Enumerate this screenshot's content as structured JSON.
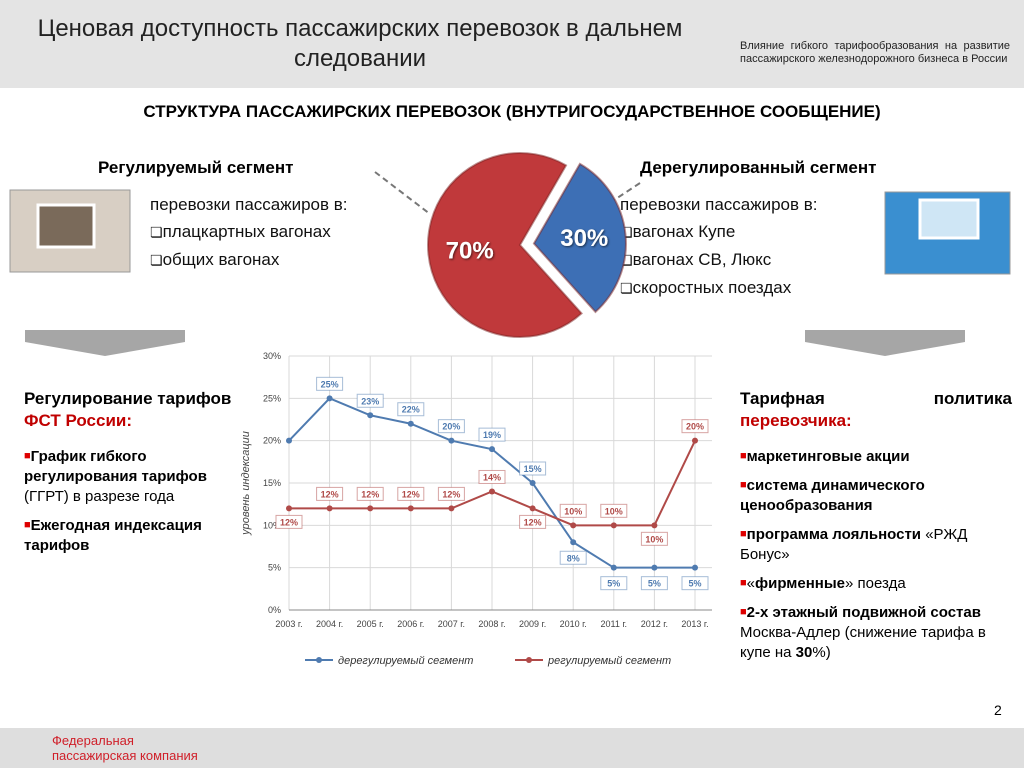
{
  "header": {
    "title": "Ценовая доступность пассажирских перевозок в дальнем следовании",
    "subtitle": "Влияние гибкого тарифообразования на развитие пассажирского железнодорожного бизнеса в России"
  },
  "section_title": "СТРУКТУРА ПАССАЖИРСКИХ ПЕРЕВОЗОК (ВНУТРИГОСУДАРСТВЕННОЕ СООБЩЕНИЕ)",
  "left_segment": {
    "intro": "перевозки пассажиров в:",
    "items": [
      "плацкартных вагонах",
      "общих вагонах"
    ]
  },
  "right_segment": {
    "intro": "перевозки пассажиров в:",
    "items": [
      "вагонах Купе",
      "вагонах СВ, Люкс",
      "скоростных поездах"
    ]
  },
  "chart_data": [
    {
      "type": "pie",
      "categories": [
        "Регулируемый сегмент",
        "Дерегулированный сегмент"
      ],
      "values": [
        70,
        30
      ],
      "value_labels": [
        "70%",
        "30%"
      ],
      "colors": [
        "#c0393b",
        "#3d6fb5"
      ]
    },
    {
      "type": "line",
      "x": [
        "2003 г.",
        "2004 г.",
        "2005 г.",
        "2006 г.",
        "2007 г.",
        "2008 г.",
        "2009 г.",
        "2010 г.",
        "2011 г.",
        "2012 г.",
        "2013 г."
      ],
      "y_label": "уровень индексации",
      "ylim": [
        0,
        30
      ],
      "yticks": [
        {
          "value": 0,
          "label": "0%"
        },
        {
          "value": 5,
          "label": "5%"
        },
        {
          "value": 10,
          "label": "10%"
        },
        {
          "value": 15,
          "label": "15%"
        },
        {
          "value": 20,
          "label": "20%"
        },
        {
          "value": 25,
          "label": "25%"
        },
        {
          "value": 30,
          "label": "30%"
        }
      ],
      "grid": true,
      "legend": "bottom",
      "series": [
        {
          "name": "дерегулируемый сегмент",
          "color": "#4f7bb0",
          "values": [
            20,
            25,
            23,
            22,
            20,
            19,
            15,
            8,
            5,
            5,
            5
          ],
          "value_labels": [
            null,
            "25%",
            "23%",
            "22%",
            "20%",
            "19%",
            "15%",
            "8%",
            "5%",
            "5%",
            "5%"
          ]
        },
        {
          "name": "регулируемый сегмент",
          "color": "#b04a48",
          "values": [
            12,
            12,
            12,
            12,
            12,
            14,
            12,
            10,
            10,
            10,
            20
          ],
          "value_labels": [
            "12%",
            "12%",
            "12%",
            "12%",
            "12%",
            "14%",
            "12%",
            "10%",
            "10%",
            "10%",
            "20%"
          ]
        }
      ]
    }
  ],
  "left_panel": {
    "heading": [
      {
        "text": "Регулирование тарифов "
      },
      {
        "text": "ФСТ России:",
        "color": "#c00000"
      }
    ],
    "bullets": [
      [
        {
          "text": "График гибкого регулирования тарифов",
          "bold": true
        },
        {
          "text": " (ГГРТ) в разрезе года"
        }
      ],
      [
        {
          "text": "Ежегодная индексация тарифов",
          "bold": true
        }
      ]
    ]
  },
  "right_panel": {
    "heading": [
      {
        "text": "Тарифная политика "
      },
      {
        "text": "перевозчика:",
        "color": "#c00000"
      }
    ],
    "bullets": [
      [
        {
          "text": "маркетинговые акции",
          "bold": true
        }
      ],
      [
        {
          "text": "система динамического ценообразования",
          "bold": true
        }
      ],
      [
        {
          "text": "программа лояльности",
          "bold": true
        },
        {
          "text": " «РЖД Бонус»"
        }
      ],
      [
        {
          "text": "«"
        },
        {
          "text": "фирменные",
          "bold": true
        },
        {
          "text": "» поезда"
        }
      ],
      [
        {
          "text": "2-х этажный подвижной состав",
          "bold": true
        },
        {
          "text": " Москва-Адлер (снижение тарифа в купе на "
        },
        {
          "text": "30",
          "bold": true
        },
        {
          "text": "%)"
        }
      ]
    ]
  },
  "page_number": "2",
  "footer": {
    "company": [
      "Федеральная",
      "пассажирская компания"
    ]
  }
}
